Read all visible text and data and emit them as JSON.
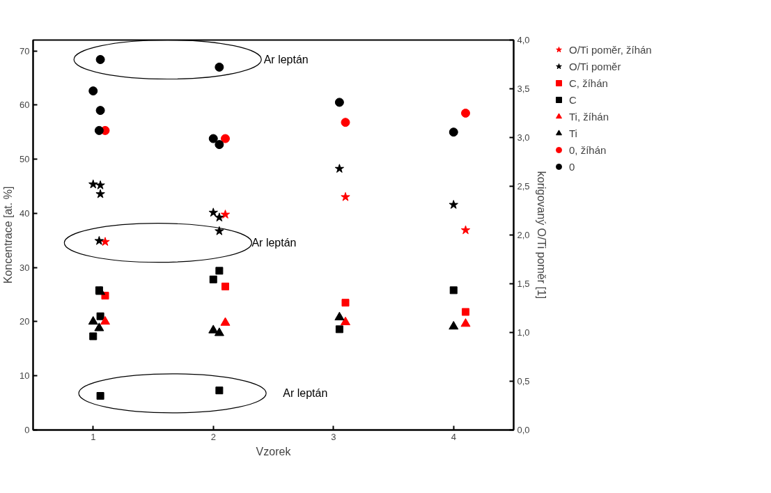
{
  "chart_data": {
    "type": "scatter",
    "xlabel": "Vzorek",
    "ylabel": "Koncentrace [at. %]",
    "y2label": "korigovaný O/Ti poměr [1]",
    "xlim": [
      0.5,
      4.5
    ],
    "xticks": [
      1,
      2,
      3,
      4
    ],
    "ylim": [
      0,
      72
    ],
    "yticks": [
      0,
      10,
      20,
      30,
      40,
      50,
      60,
      70
    ],
    "y2lim": [
      0,
      4
    ],
    "y2ticks": [
      {
        "value": 0,
        "label": "0,0"
      },
      {
        "value": 0.5,
        "label": "0,5"
      },
      {
        "value": 1,
        "label": "1,0"
      },
      {
        "value": 1.5,
        "label": "1,5"
      },
      {
        "value": 2,
        "label": "2,0"
      },
      {
        "value": 2.5,
        "label": "2,5"
      },
      {
        "value": 3,
        "label": "3,0"
      },
      {
        "value": 3.5,
        "label": "3,5"
      },
      {
        "value": 4,
        "label": "4,0"
      }
    ],
    "grid": false,
    "legend": "right",
    "series": [
      {
        "name": "O/Ti poměr, žíhán",
        "color": "#ff0000",
        "marker": "star",
        "axis": "y2",
        "x": [
          1.1,
          2.1,
          3.1,
          4.1
        ],
        "values": [
          1.93,
          2.21,
          2.39,
          2.05
        ]
      },
      {
        "name": "O/Ti poměr",
        "color": "#000000",
        "marker": "star",
        "axis": "y2",
        "x": [
          1.0,
          1.06,
          1.06,
          1.05,
          2.0,
          2.05,
          2.05,
          3.05,
          4.0
        ],
        "values": [
          2.52,
          2.51,
          2.42,
          1.94,
          2.23,
          2.18,
          2.04,
          2.68,
          2.31
        ]
      },
      {
        "name": "C, žíhán",
        "color": "#ff0000",
        "marker": "square",
        "x": [
          1.1,
          2.1,
          3.1,
          4.1
        ],
        "values": [
          24.8,
          26.5,
          23.5,
          21.8
        ]
      },
      {
        "name": "C",
        "color": "#000000",
        "marker": "square",
        "x": [
          1.05,
          1.06,
          1.0,
          1.06,
          2.0,
          2.05,
          2.05,
          3.05,
          4.0
        ],
        "values": [
          25.8,
          21.0,
          17.3,
          6.3,
          27.8,
          29.4,
          7.3,
          18.6,
          25.8
        ]
      },
      {
        "name": "Ti, žíhán",
        "color": "#ff0000",
        "marker": "triangle",
        "x": [
          1.1,
          2.1,
          3.1,
          4.1
        ],
        "values": [
          20.0,
          19.8,
          19.9,
          19.6
        ]
      },
      {
        "name": "Ti",
        "color": "#000000",
        "marker": "triangle",
        "x": [
          1.06,
          1.0,
          1.05,
          2.0,
          2.05,
          3.05,
          4.0
        ],
        "values": [
          25.5,
          20.0,
          18.8,
          18.4,
          17.9,
          20.8,
          19.1
        ]
      },
      {
        "name": "0, žíhán",
        "color": "#ff0000",
        "marker": "circle",
        "x": [
          1.1,
          2.1,
          3.1,
          4.1
        ],
        "values": [
          55.3,
          53.8,
          56.8,
          58.5
        ]
      },
      {
        "name": "0",
        "color": "#000000",
        "marker": "circle",
        "x": [
          1.06,
          2.05,
          1.0,
          1.06,
          1.05,
          2.0,
          2.05,
          3.05,
          4.0
        ],
        "values": [
          68.4,
          67.0,
          62.6,
          59.0,
          55.3,
          53.8,
          52.7,
          60.5,
          55.0
        ]
      }
    ],
    "annotations": [
      "Ar leptán",
      "Ar leptán",
      "Ar leptán"
    ]
  }
}
